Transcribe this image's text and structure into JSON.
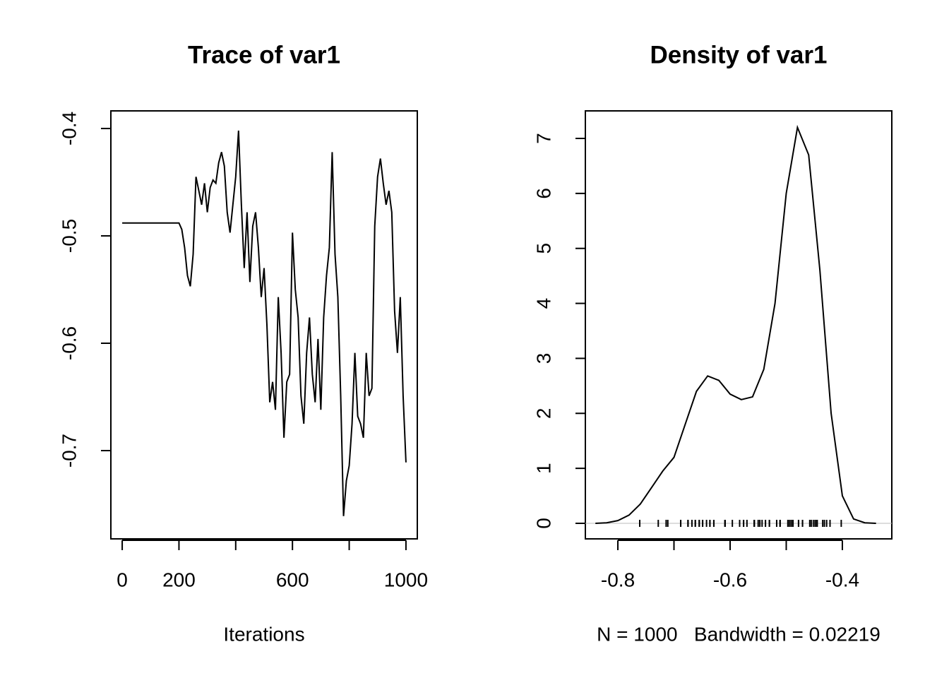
{
  "chart_data": [
    {
      "type": "line",
      "title": "Trace of var1",
      "xlabel": "Iterations",
      "color": "#000000",
      "x": [
        0,
        200,
        210,
        220,
        230,
        240,
        250,
        260,
        270,
        280,
        290,
        300,
        310,
        320,
        330,
        340,
        350,
        360,
        370,
        380,
        390,
        400,
        410,
        420,
        430,
        440,
        450,
        460,
        470,
        480,
        490,
        500,
        510,
        520,
        530,
        540,
        550,
        560,
        570,
        580,
        590,
        600,
        610,
        620,
        630,
        640,
        650,
        660,
        670,
        680,
        690,
        700,
        710,
        720,
        730,
        740,
        750,
        760,
        770,
        780,
        790,
        800,
        810,
        820,
        830,
        840,
        850,
        860,
        870,
        880,
        890,
        900,
        910,
        920,
        930,
        940,
        950,
        960,
        970,
        980,
        990,
        1000
      ],
      "values": [
        -0.488,
        -0.488,
        -0.494,
        -0.511,
        -0.537,
        -0.547,
        -0.517,
        -0.445,
        -0.458,
        -0.471,
        -0.451,
        -0.478,
        -0.455,
        -0.448,
        -0.451,
        -0.432,
        -0.422,
        -0.435,
        -0.478,
        -0.497,
        -0.471,
        -0.445,
        -0.402,
        -0.471,
        -0.53,
        -0.478,
        -0.543,
        -0.491,
        -0.478,
        -0.511,
        -0.557,
        -0.53,
        -0.583,
        -0.655,
        -0.636,
        -0.662,
        -0.557,
        -0.609,
        -0.688,
        -0.636,
        -0.629,
        -0.497,
        -0.55,
        -0.576,
        -0.649,
        -0.675,
        -0.609,
        -0.576,
        -0.629,
        -0.655,
        -0.596,
        -0.662,
        -0.576,
        -0.537,
        -0.511,
        -0.422,
        -0.517,
        -0.557,
        -0.649,
        -0.761,
        -0.728,
        -0.714,
        -0.675,
        -0.609,
        -0.668,
        -0.675,
        -0.688,
        -0.609,
        -0.649,
        -0.642,
        -0.491,
        -0.445,
        -0.428,
        -0.451,
        -0.471,
        -0.458,
        -0.478,
        -0.57,
        -0.609,
        -0.557,
        -0.649,
        -0.711
      ],
      "xlim": [
        -40,
        1040
      ],
      "ylim": [
        -0.7822,
        -0.3836
      ],
      "xticks": [
        0,
        200,
        {
          "value": 400,
          "label": null
        },
        600,
        {
          "value": 800,
          "label": null
        },
        1000
      ],
      "yticks": [
        -0.4,
        -0.5,
        -0.6,
        -0.7
      ]
    },
    {
      "type": "density",
      "title": "Density of var1",
      "xlabel": "N = 1000   Bandwidth = 0.02219",
      "color": "#000000",
      "rug": true,
      "x": [
        -0.84,
        -0.82,
        -0.8,
        -0.78,
        -0.76,
        -0.74,
        -0.72,
        -0.7,
        -0.68,
        -0.66,
        -0.64,
        -0.62,
        -0.6,
        -0.58,
        -0.56,
        -0.54,
        -0.52,
        -0.5,
        -0.48,
        -0.46,
        -0.44,
        -0.42,
        -0.4,
        -0.38,
        -0.36,
        -0.34
      ],
      "values": [
        0,
        0.01,
        0.05,
        0.15,
        0.35,
        0.65,
        0.95,
        1.2,
        1.8,
        2.4,
        2.68,
        2.6,
        2.35,
        2.25,
        2.3,
        2.8,
        4.0,
        6.0,
        7.2,
        6.7,
        4.6,
        2.0,
        0.5,
        0.08,
        0.01,
        0
      ],
      "xlim": [
        -0.8579,
        -0.3119
      ],
      "ylim": [
        -0.2826,
        7.501
      ],
      "xticks": [
        -0.8,
        {
          "value": -0.7,
          "label": null
        },
        -0.6,
        {
          "value": -0.5,
          "label": null
        },
        -0.4
      ],
      "yticks": [
        0,
        1,
        2,
        3,
        4,
        5,
        6,
        7
      ]
    }
  ]
}
